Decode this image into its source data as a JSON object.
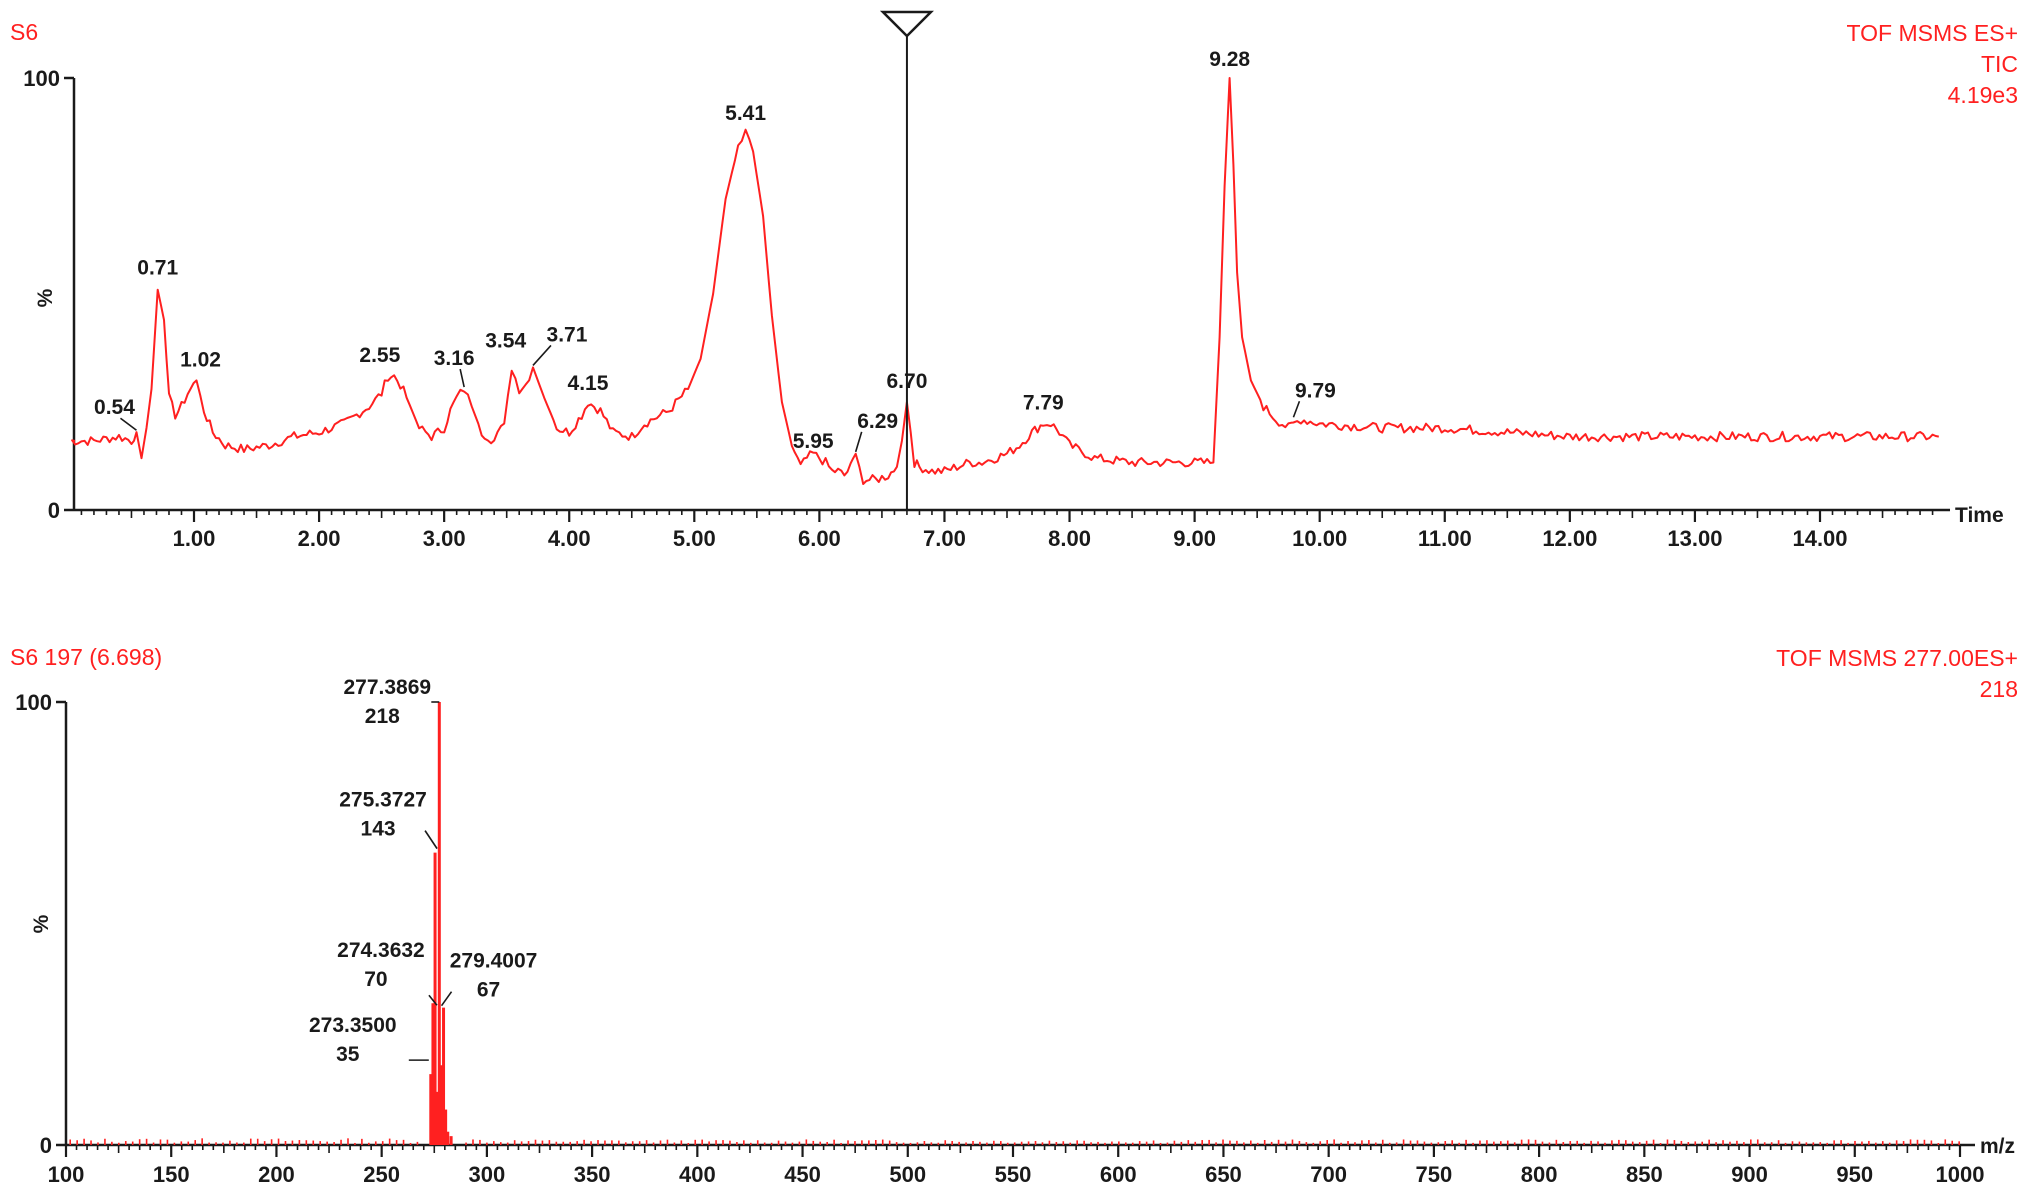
{
  "chart_data": [
    {
      "type": "line",
      "panel": "chromatogram",
      "header_left": "S6",
      "header_right": [
        "TOF MSMS ES+",
        "TIC",
        "4.19e3"
      ],
      "xlabel": "Time",
      "ylabel": "%",
      "xlim": [
        0,
        14.95
      ],
      "ylim": [
        0,
        100
      ],
      "y_ticks": [
        {
          "value": 0,
          "label": "0"
        },
        {
          "value": 100,
          "label": "100"
        }
      ],
      "x_ticks": [
        {
          "value": 1,
          "label": "1.00"
        },
        {
          "value": 2,
          "label": "2.00"
        },
        {
          "value": 3,
          "label": "3.00"
        },
        {
          "value": 4,
          "label": "4.00"
        },
        {
          "value": 5,
          "label": "5.00"
        },
        {
          "value": 6,
          "label": "6.00"
        },
        {
          "value": 7,
          "label": "7.00"
        },
        {
          "value": 8,
          "label": "8.00"
        },
        {
          "value": 9,
          "label": "9.00"
        },
        {
          "value": 10,
          "label": "10.00"
        },
        {
          "value": 11,
          "label": "11.00"
        },
        {
          "value": 12,
          "label": "12.00"
        },
        {
          "value": 13,
          "label": "13.00"
        },
        {
          "value": 14,
          "label": "14.00"
        }
      ],
      "marker_x": 6.7,
      "series": [
        {
          "color": "#ff2020",
          "x": [
            0,
            0.2,
            0.4,
            0.5,
            0.54,
            0.58,
            0.62,
            0.66,
            0.71,
            0.76,
            0.8,
            0.85,
            0.9,
            0.95,
            1.02,
            1.08,
            1.15,
            1.25,
            1.4,
            1.6,
            1.8,
            2.0,
            2.2,
            2.3,
            2.4,
            2.5,
            2.55,
            2.6,
            2.65,
            2.7,
            2.8,
            2.9,
            3.0,
            3.05,
            3.1,
            3.16,
            3.22,
            3.3,
            3.4,
            3.48,
            3.54,
            3.6,
            3.65,
            3.71,
            3.8,
            3.9,
            4.0,
            4.1,
            4.15,
            4.25,
            4.35,
            4.5,
            4.6,
            4.8,
            4.95,
            5.05,
            5.15,
            5.25,
            5.35,
            5.41,
            5.47,
            5.55,
            5.62,
            5.7,
            5.78,
            5.85,
            5.9,
            5.95,
            6.0,
            6.05,
            6.1,
            6.15,
            6.2,
            6.25,
            6.29,
            6.35,
            6.45,
            6.55,
            6.62,
            6.66,
            6.7,
            6.73,
            6.76,
            6.8,
            6.9,
            7.0,
            7.1,
            7.2,
            7.3,
            7.4,
            7.5,
            7.6,
            7.7,
            7.79,
            7.85,
            7.92,
            8.0,
            8.2,
            8.5,
            8.8,
            9.0,
            9.1,
            9.15,
            9.2,
            9.24,
            9.28,
            9.31,
            9.34,
            9.38,
            9.45,
            9.55,
            9.65,
            9.75,
            9.79,
            9.85,
            10.0,
            10.5,
            11.0,
            11.5,
            12.0,
            12.5,
            13.0,
            13.5,
            14.0,
            14.5,
            14.95
          ],
          "y": [
            16,
            16,
            17,
            16,
            18,
            12,
            19,
            28,
            51,
            44,
            26,
            22,
            24,
            27,
            30,
            23,
            18,
            15,
            14,
            15,
            17,
            18,
            20,
            22,
            24,
            27,
            31,
            31,
            29,
            26,
            19,
            17,
            19,
            23,
            26,
            28,
            24,
            18,
            16,
            20,
            33,
            28,
            29,
            33,
            26,
            19,
            18,
            22,
            25,
            23,
            18,
            17,
            20,
            23,
            28,
            35,
            50,
            72,
            84,
            87,
            83,
            68,
            45,
            25,
            15,
            10,
            12,
            13,
            12,
            11,
            9,
            9,
            8,
            10,
            13,
            7,
            7,
            8,
            10,
            16,
            25,
            18,
            11,
            10,
            9,
            9,
            10,
            11,
            11,
            12,
            13,
            15,
            18,
            20,
            20,
            18,
            15,
            12,
            11,
            11,
            11,
            11,
            11,
            40,
            75,
            100,
            80,
            55,
            40,
            30,
            24,
            21,
            19,
            20,
            21,
            20,
            19,
            19,
            18,
            17,
            17,
            17,
            17,
            17,
            17,
            17
          ]
        }
      ],
      "peak_labels": [
        {
          "x": 0.54,
          "y": 18,
          "label": "0.54"
        },
        {
          "x": 0.71,
          "y": 51,
          "label": "0.71"
        },
        {
          "x": 1.02,
          "y": 30,
          "label": "1.02"
        },
        {
          "x": 2.55,
          "y": 31,
          "label": "2.55"
        },
        {
          "x": 3.16,
          "y": 28,
          "label": "3.16"
        },
        {
          "x": 3.54,
          "y": 33,
          "label": "3.54"
        },
        {
          "x": 3.71,
          "y": 33,
          "label": "3.71"
        },
        {
          "x": 4.15,
          "y": 25,
          "label": "4.15"
        },
        {
          "x": 5.41,
          "y": 87,
          "label": "5.41"
        },
        {
          "x": 5.95,
          "y": 12,
          "label": "5.95"
        },
        {
          "x": 6.29,
          "y": 13,
          "label": "6.29"
        },
        {
          "x": 6.7,
          "y": 25,
          "label": "6.70"
        },
        {
          "x": 7.79,
          "y": 20,
          "label": "7.79"
        },
        {
          "x": 9.28,
          "y": 100,
          "label": "9.28"
        },
        {
          "x": 9.79,
          "y": 21,
          "label": "9.79"
        }
      ]
    },
    {
      "type": "bar",
      "panel": "mass-spectrum",
      "header_left": "S6  197 (6.698)",
      "header_right": [
        "TOF MSMS 277.00ES+",
        "218"
      ],
      "xlabel": "m/z",
      "ylabel": "%",
      "xlim": [
        100,
        1000
      ],
      "ylim": [
        0,
        100
      ],
      "y_ticks": [
        {
          "value": 0,
          "label": "0"
        },
        {
          "value": 100,
          "label": "100"
        }
      ],
      "x_ticks": [
        {
          "value": 100,
          "label": "100"
        },
        {
          "value": 150,
          "label": "150"
        },
        {
          "value": 200,
          "label": "200"
        },
        {
          "value": 250,
          "label": "250"
        },
        {
          "value": 300,
          "label": "300"
        },
        {
          "value": 350,
          "label": "350"
        },
        {
          "value": 400,
          "label": "400"
        },
        {
          "value": 450,
          "label": "450"
        },
        {
          "value": 500,
          "label": "500"
        },
        {
          "value": 550,
          "label": "550"
        },
        {
          "value": 600,
          "label": "600"
        },
        {
          "value": 650,
          "label": "650"
        },
        {
          "value": 700,
          "label": "700"
        },
        {
          "value": 750,
          "label": "750"
        },
        {
          "value": 800,
          "label": "800"
        },
        {
          "value": 850,
          "label": "850"
        },
        {
          "value": 900,
          "label": "900"
        },
        {
          "value": 950,
          "label": "950"
        },
        {
          "value": 1000,
          "label": "1000"
        }
      ],
      "peaks": [
        {
          "mz": 273.35,
          "intensity": 16,
          "label_mz": "273.3500",
          "label_int": "35"
        },
        {
          "mz": 274.3632,
          "intensity": 32,
          "label_mz": "274.3632",
          "label_int": "70"
        },
        {
          "mz": 275.3727,
          "intensity": 66,
          "label_mz": "275.3727",
          "label_int": "143"
        },
        {
          "mz": 276.38,
          "intensity": 12
        },
        {
          "mz": 277.3869,
          "intensity": 100,
          "label_mz": "277.3869",
          "label_int": "218"
        },
        {
          "mz": 278.39,
          "intensity": 18
        },
        {
          "mz": 279.4007,
          "intensity": 31,
          "label_mz": "279.4007",
          "label_int": "67"
        },
        {
          "mz": 280.4,
          "intensity": 8
        },
        {
          "mz": 281.4,
          "intensity": 3
        },
        {
          "mz": 283.0,
          "intensity": 2
        }
      ]
    }
  ]
}
